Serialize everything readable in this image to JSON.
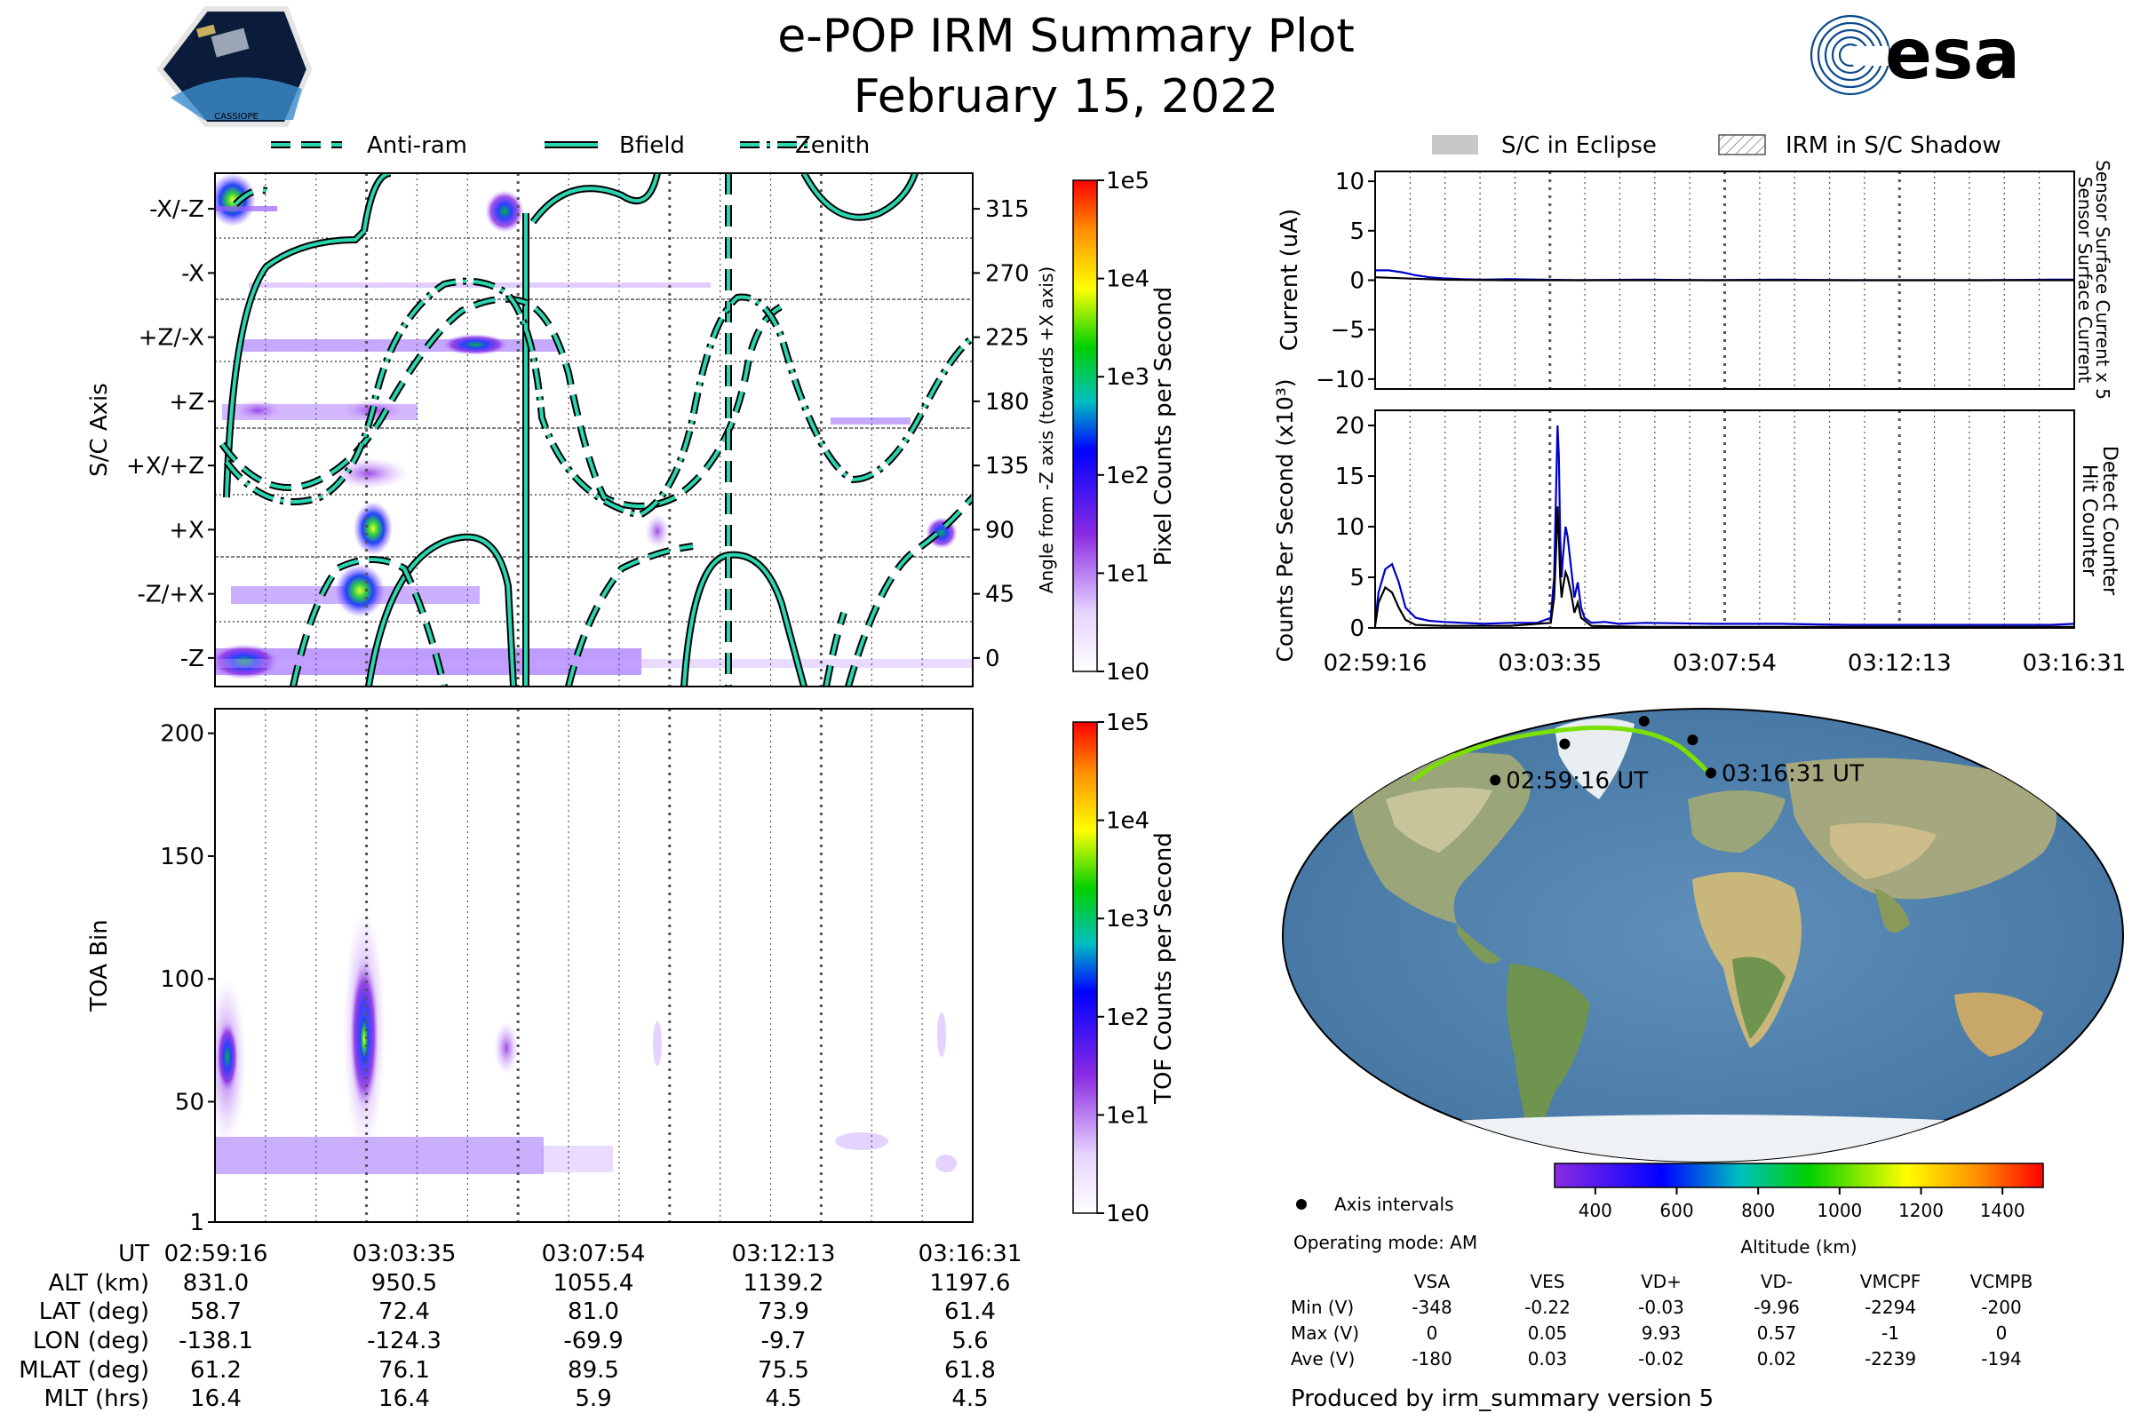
{
  "header": {
    "title": "e-POP IRM Summary Plot",
    "date": "February 15, 2022",
    "logo_left_text": "CASSIOPE",
    "logo_right_text": "esa"
  },
  "legend_top": [
    {
      "label": "Anti-ram",
      "style": "dashed"
    },
    {
      "label": "Bfield",
      "style": "solid"
    },
    {
      "label": "Zenith",
      "style": "dashdot"
    }
  ],
  "legend_right": [
    {
      "label": "S/C in Eclipse",
      "style": "gray-fill"
    },
    {
      "label": "IRM in S/C Shadow",
      "style": "hatch"
    }
  ],
  "colors": {
    "curve_outline": "#000000",
    "curve_fill": "#2ad6b0",
    "sensor_series": "#0000cc",
    "hit_series": "#000000",
    "grid": "#555555"
  },
  "chart_data": [
    {
      "id": "sc-axis-panel",
      "type": "heatmap",
      "ylabel": "S/C Axis",
      "y2label": "Angle from -Z axis (towards +X axis)",
      "y_categories": [
        "-X/-Z",
        "-X",
        "+Z/-X",
        "+Z",
        "+X/+Z",
        "+X",
        "-Z/+X",
        "-Z"
      ],
      "y2_ticks": [
        315,
        270,
        225,
        180,
        135,
        90,
        45,
        0
      ],
      "ylim": [
        -20,
        340
      ],
      "x_ticks": [
        "02:59:16",
        "03:03:35",
        "03:07:54",
        "03:12:13",
        "03:16:31"
      ],
      "colorbar": {
        "label": "Pixel Counts per Second",
        "ticks": [
          "1e5",
          "1e4",
          "1e3",
          "1e2",
          "1e1",
          "1e0"
        ],
        "scale": "log"
      },
      "series": [
        {
          "name": "Anti-ram",
          "style": "dashed"
        },
        {
          "name": "Bfield",
          "style": "solid"
        },
        {
          "name": "Zenith",
          "style": "dashdot"
        }
      ]
    },
    {
      "id": "toa-panel",
      "type": "heatmap",
      "ylabel": "TOA Bin",
      "y_ticks": [
        1,
        50,
        100,
        150,
        200
      ],
      "ylim": [
        1,
        210
      ],
      "x_ticks": [
        "02:59:16",
        "03:03:35",
        "03:07:54",
        "03:12:13",
        "03:16:31"
      ],
      "colorbar": {
        "label": "TOF Counts per Second",
        "ticks": [
          "1e5",
          "1e4",
          "1e3",
          "1e2",
          "1e1",
          "1e0"
        ],
        "scale": "log"
      }
    },
    {
      "id": "current-panel",
      "type": "line",
      "ylabel": "Current (uA)",
      "right_label_1": "Sensor Surface Current x 5",
      "right_label_2": "Sensor Surface Current",
      "y_ticks": [
        10,
        5,
        0,
        -5,
        -10
      ],
      "y_tick_labels": [
        "10",
        "5",
        "0",
        "−5",
        "−10"
      ],
      "ylim": [
        -11,
        11
      ],
      "xlim": [
        0,
        1035
      ],
      "series": [
        {
          "name": "Sensor Surface Current x 5",
          "color": "#0000cc",
          "x": [
            0,
            20,
            40,
            60,
            80,
            100,
            130,
            160,
            200,
            300,
            400,
            500,
            600,
            700,
            800,
            900,
            1000,
            1035
          ],
          "values": [
            1.0,
            1.0,
            0.8,
            0.5,
            0.3,
            0.2,
            0.1,
            0.05,
            0.1,
            0.0,
            0.05,
            0.0,
            0.05,
            0.0,
            0.0,
            0.0,
            0.05,
            0.05
          ]
        },
        {
          "name": "Sensor Surface Current",
          "color": "#000000",
          "x": [
            0,
            40,
            100,
            200,
            400,
            600,
            800,
            1035
          ],
          "values": [
            0.3,
            0.2,
            0.05,
            0.0,
            0.0,
            0.0,
            0.0,
            0.0
          ]
        }
      ]
    },
    {
      "id": "counts-panel",
      "type": "line",
      "ylabel": "Counts Per Second (x10³)",
      "right_label_1": "Detect Counter",
      "right_label_2": "Hit Counter",
      "y_ticks": [
        0,
        5,
        10,
        15,
        20
      ],
      "ylim": [
        0,
        21.5
      ],
      "xlim": [
        0,
        1035
      ],
      "x_ticks": [
        "02:59:16",
        "03:03:35",
        "03:07:54",
        "03:12:13",
        "03:16:31"
      ],
      "series": [
        {
          "name": "Detect Counter",
          "color": "#0000cc",
          "x": [
            0,
            5,
            15,
            25,
            35,
            45,
            60,
            80,
            100,
            130,
            160,
            200,
            240,
            260,
            265,
            268,
            270,
            272,
            274,
            276,
            278,
            282,
            285,
            290,
            295,
            300,
            305,
            310,
            320,
            340,
            360,
            400,
            500,
            600,
            700,
            800,
            900,
            1000,
            1035
          ],
          "values": [
            0.5,
            3.5,
            5.8,
            6.3,
            4.5,
            2.0,
            1.0,
            0.7,
            0.6,
            0.5,
            0.4,
            0.5,
            0.5,
            1.0,
            5.0,
            14.0,
            20.0,
            17.0,
            9.0,
            5.0,
            7.0,
            10.0,
            9.0,
            6.0,
            3.0,
            4.5,
            2.0,
            1.0,
            0.5,
            0.6,
            0.4,
            0.5,
            0.4,
            0.4,
            0.3,
            0.3,
            0.3,
            0.3,
            0.4
          ]
        },
        {
          "name": "Hit Counter",
          "color": "#000000",
          "x": [
            0,
            5,
            15,
            25,
            35,
            45,
            60,
            100,
            200,
            260,
            265,
            268,
            270,
            272,
            274,
            276,
            278,
            282,
            285,
            290,
            295,
            300,
            305,
            320,
            400,
            600,
            800,
            1035
          ],
          "values": [
            0.2,
            2.5,
            4.0,
            3.5,
            2.0,
            0.8,
            0.3,
            0.2,
            0.2,
            0.5,
            3.0,
            8.0,
            12.0,
            9.0,
            5.0,
            3.0,
            4.0,
            5.5,
            5.0,
            3.5,
            1.5,
            2.5,
            1.0,
            0.2,
            0.1,
            0.1,
            0.1,
            0.1
          ]
        }
      ]
    },
    {
      "id": "orbit-map",
      "type": "scatter",
      "points": [
        {
          "label": "02:59:16 UT",
          "lon": -138.1,
          "lat": 58.7
        },
        {
          "label": "",
          "lon": -124.3,
          "lat": 72.4
        },
        {
          "label": "",
          "lon": -69.9,
          "lat": 81.0
        },
        {
          "label": "",
          "lon": -9.7,
          "lat": 73.9
        },
        {
          "label": "03:16:31 UT",
          "lon": 5.6,
          "lat": 61.4
        }
      ],
      "colorbar": {
        "label": "Altitude (km)",
        "ticks": [
          400,
          600,
          800,
          1000,
          1200,
          1400
        ],
        "range": [
          300,
          1500
        ]
      },
      "legend": "Axis intervals"
    }
  ],
  "ephemeris": {
    "row_labels": [
      "UT",
      "ALT (km)",
      "LAT (deg)",
      "LON (deg)",
      "MLAT (deg)",
      "MLT (hrs)"
    ],
    "columns": [
      [
        "02:59:16",
        "831.0",
        "58.7",
        "-138.1",
        "61.2",
        "16.4"
      ],
      [
        "03:03:35",
        "950.5",
        "72.4",
        "-124.3",
        "76.1",
        "16.4"
      ],
      [
        "03:07:54",
        "1055.4",
        "81.0",
        "-69.9",
        "89.5",
        "5.9"
      ],
      [
        "03:12:13",
        "1139.2",
        "73.9",
        "-9.7",
        "75.5",
        "4.5"
      ],
      [
        "03:16:31",
        "1197.6",
        "61.4",
        "5.6",
        "61.8",
        "4.5"
      ]
    ]
  },
  "voltages": {
    "mode": "Operating mode: AM",
    "headers": [
      "VSA",
      "VES",
      "VD+",
      "VD-",
      "VMCPF",
      "VCMPB"
    ],
    "rows": [
      {
        "label": "Min (V)",
        "values": [
          "-348",
          "-0.22",
          "-0.03",
          "-9.96",
          "-2294",
          "-200"
        ]
      },
      {
        "label": "Max (V)",
        "values": [
          "0",
          "0.05",
          "9.93",
          "0.57",
          "-1",
          "0"
        ]
      },
      {
        "label": "Ave (V)",
        "values": [
          "-180",
          "0.03",
          "-0.02",
          "0.02",
          "-2239",
          "-194"
        ]
      }
    ]
  },
  "footer": "Produced by irm_summary version 5"
}
